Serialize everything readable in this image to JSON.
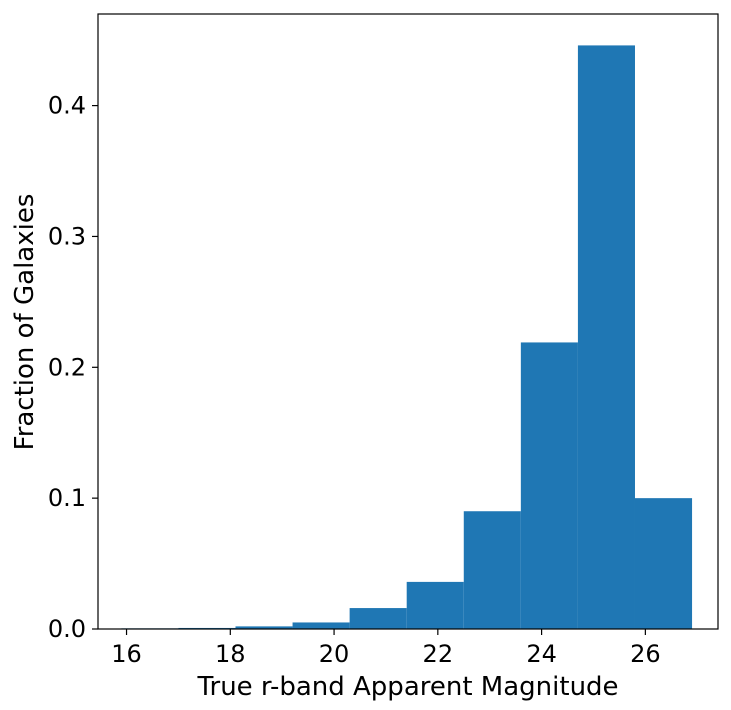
{
  "chart_data": {
    "type": "bar",
    "title": "",
    "xlabel": "True r-band Apparent Magnitude",
    "ylabel": "Fraction of Galaxies",
    "xlim": [
      15.45,
      27.4
    ],
    "ylim": [
      0.0,
      0.47
    ],
    "x_ticks": [
      16,
      18,
      20,
      22,
      24,
      26
    ],
    "y_ticks": [
      0.0,
      0.1,
      0.2,
      0.3,
      0.4
    ],
    "x_tick_labels": [
      "16",
      "18",
      "20",
      22,
      "24",
      "26"
    ],
    "y_tick_labels": [
      "0.0",
      "0.1",
      "0.2",
      "0.3",
      "0.4"
    ],
    "bin_edges": [
      15.9,
      17.0,
      18.1,
      19.2,
      20.3,
      21.4,
      22.5,
      23.6,
      24.7,
      25.8,
      26.9
    ],
    "values": [
      0.0005,
      0.0008,
      0.002,
      0.005,
      0.016,
      0.036,
      0.09,
      0.219,
      0.446,
      0.1
    ],
    "bar_color": "#1f77b4",
    "grid": false,
    "legend": "none"
  }
}
